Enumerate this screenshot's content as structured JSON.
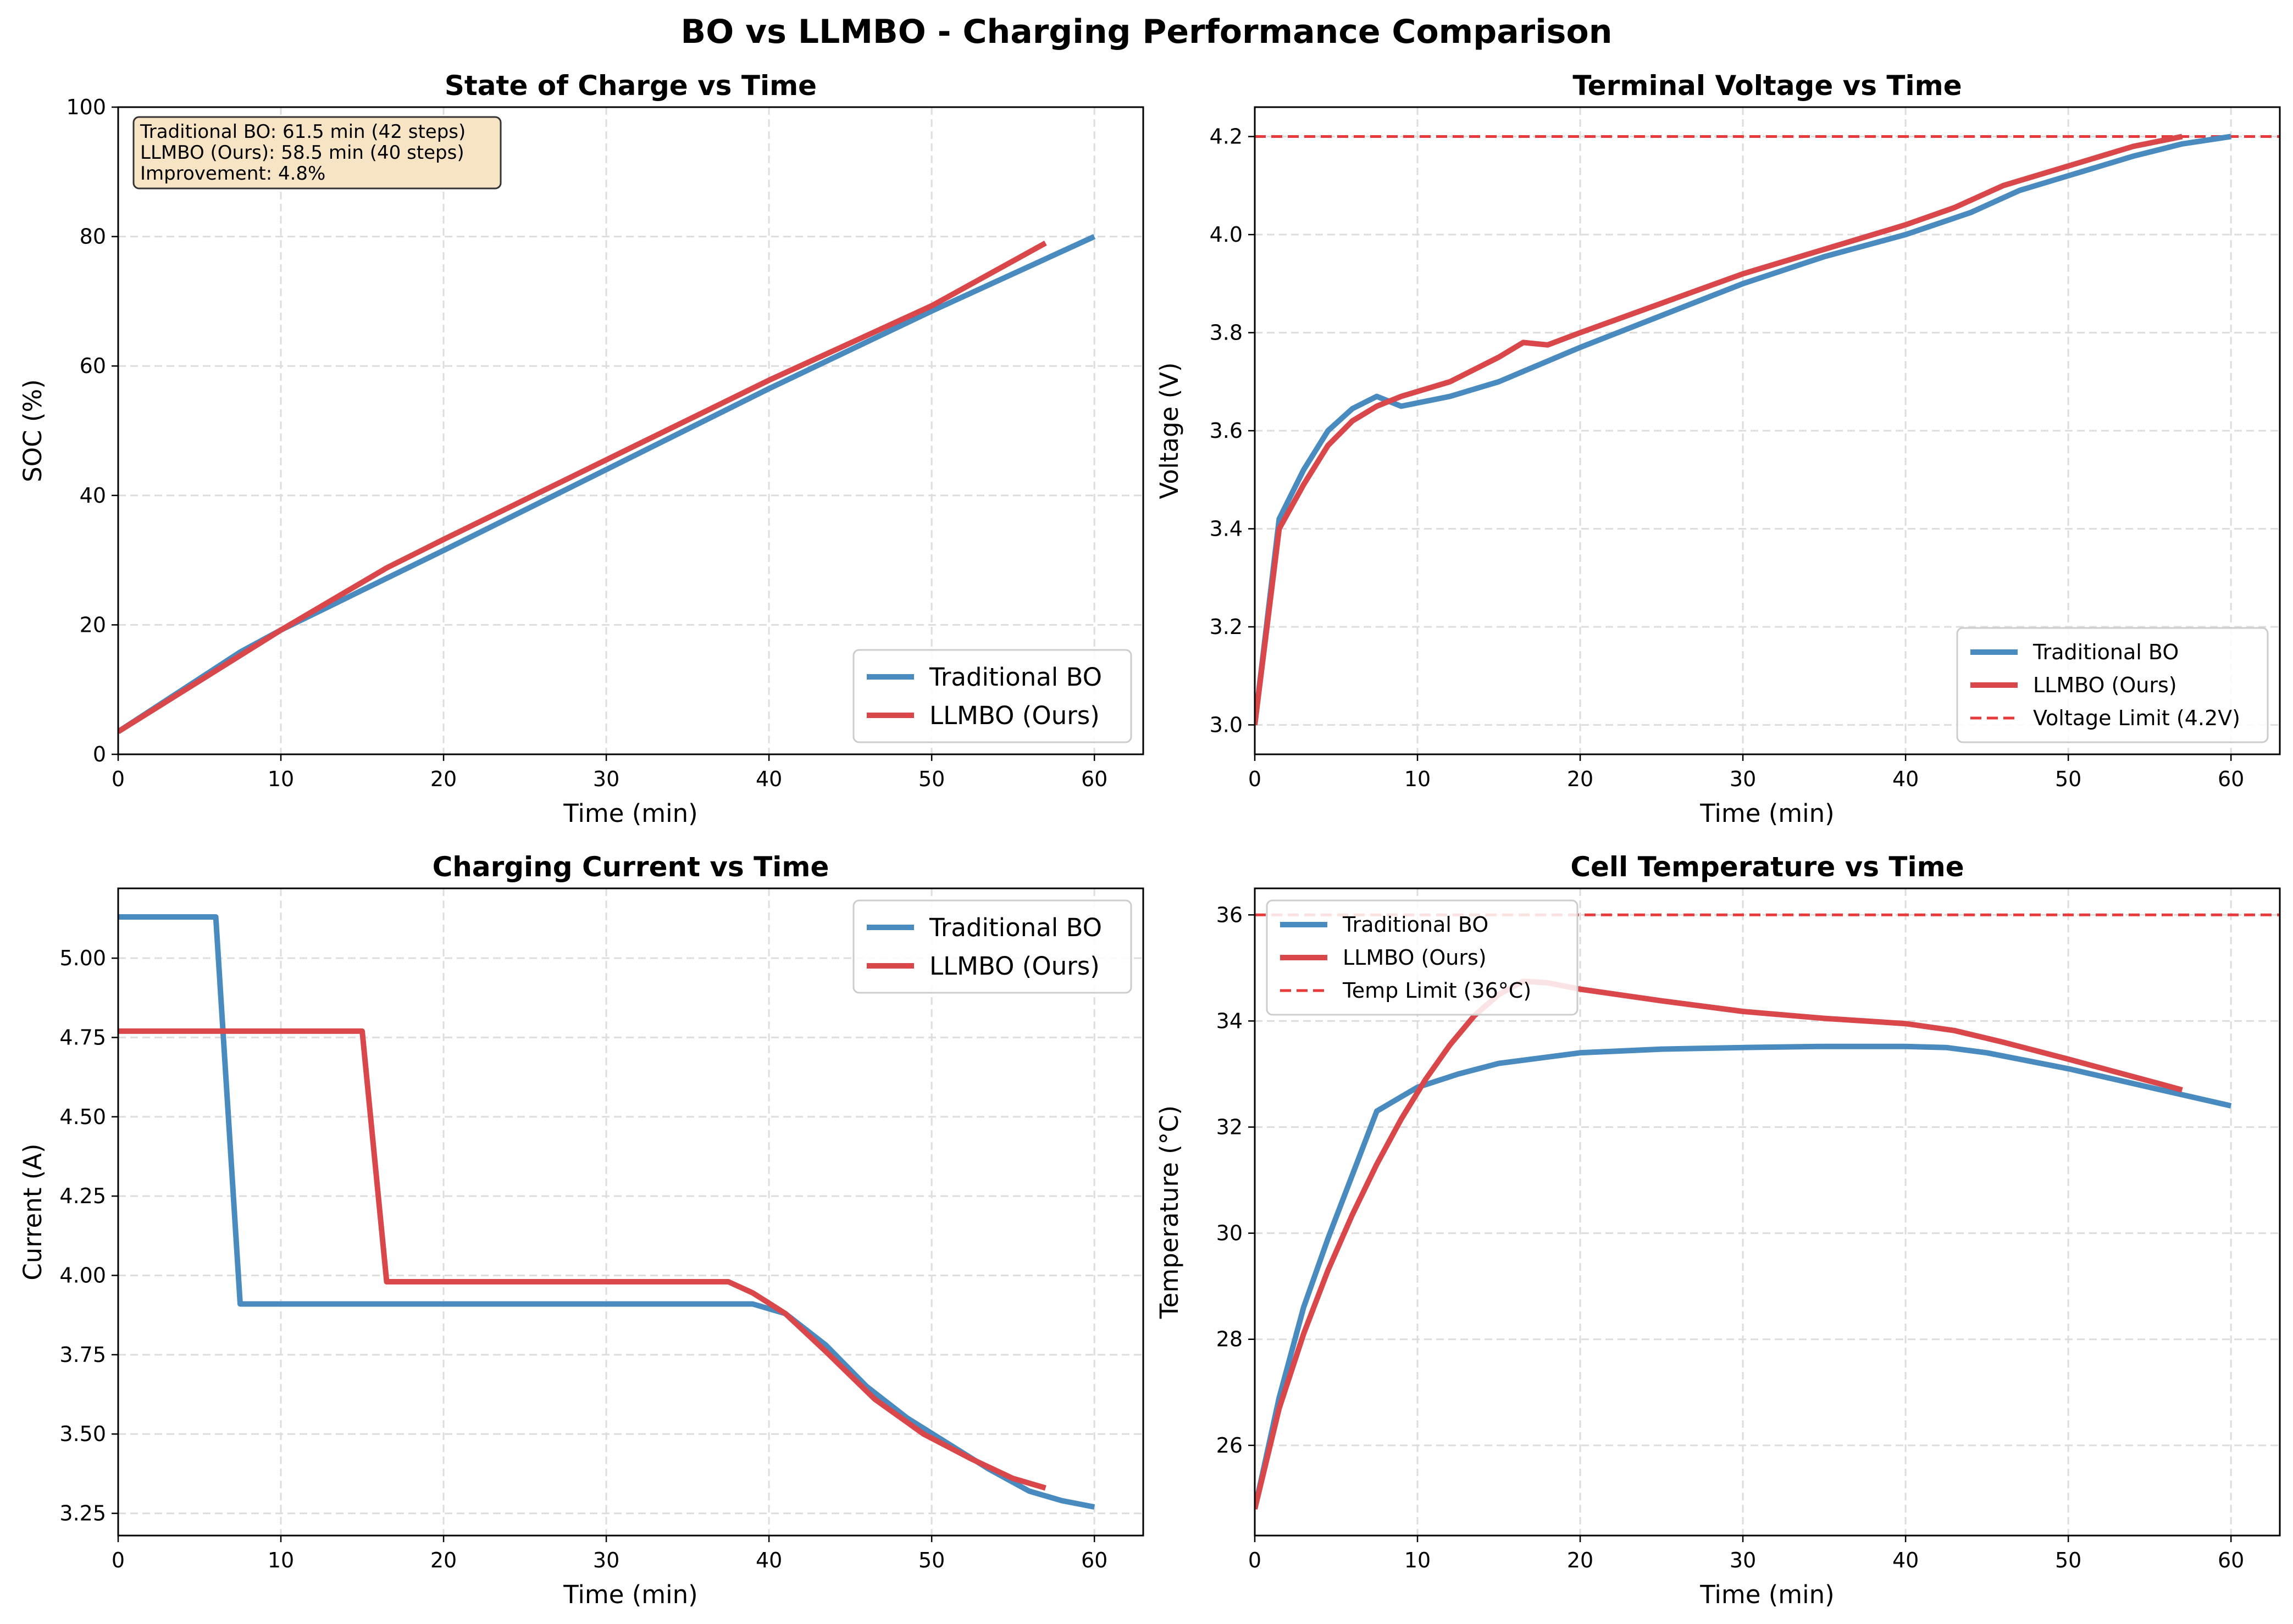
{
  "suptitle": "BO vs LLMBO - Charging Performance Comparison",
  "colors": {
    "traditional": "#4a8bbf",
    "llmbo": "#d9474b",
    "limit": "#e8393b",
    "grid": "#dddddd",
    "annotation_bg": "#f6e4c4"
  },
  "chart_data": [
    {
      "type": "line",
      "title": "State of Charge vs Time",
      "xlabel": "Time (min)",
      "ylabel": "SOC (%)",
      "xlim": [
        0,
        63
      ],
      "ylim": [
        0,
        100
      ],
      "xticks": [
        "0",
        "10",
        "20",
        "30",
        "40",
        "50",
        "60"
      ],
      "yticks": [
        "0",
        "20",
        "40",
        "60",
        "80",
        "100"
      ],
      "grid": true,
      "legend_position": "lower-right",
      "annotation": [
        "Traditional BO: 61.5 min (42 steps)",
        "LLMBO (Ours): 58.5 min (40 steps)",
        "Improvement: 4.8%"
      ],
      "series": [
        {
          "name": "Traditional BO",
          "x": [
            0,
            7.5,
            10,
            20,
            30,
            40,
            50,
            60
          ],
          "y": [
            3.5,
            15.8,
            19.2,
            31.5,
            44,
            56.5,
            68.5,
            80
          ]
        },
        {
          "name": "LLMBO (Ours)",
          "x": [
            0,
            10,
            16.5,
            20,
            30,
            40,
            50,
            57
          ],
          "y": [
            3.5,
            19.2,
            28.8,
            33.2,
            45.5,
            57.8,
            69.3,
            79
          ]
        }
      ]
    },
    {
      "type": "line",
      "title": "Terminal Voltage vs Time",
      "xlabel": "Time (min)",
      "ylabel": "Voltage (V)",
      "xlim": [
        0,
        63
      ],
      "ylim": [
        2.94,
        4.26
      ],
      "xticks": [
        "0",
        "10",
        "20",
        "30",
        "40",
        "50",
        "60"
      ],
      "yticks": [
        "3.0",
        "3.2",
        "3.4",
        "3.6",
        "3.8",
        "4.0",
        "4.2"
      ],
      "grid": true,
      "legend_position": "lower-right",
      "limit": {
        "name": "Voltage Limit (4.2V)",
        "value": 4.2
      },
      "series": [
        {
          "name": "Traditional BO",
          "x": [
            0,
            1.5,
            3,
            4.5,
            6,
            7.5,
            9,
            12,
            15,
            20,
            25,
            30,
            35,
            40,
            44,
            47,
            50,
            54,
            57,
            60
          ],
          "y": [
            3.0,
            3.42,
            3.52,
            3.6,
            3.645,
            3.67,
            3.65,
            3.67,
            3.7,
            3.77,
            3.835,
            3.9,
            3.955,
            4.0,
            4.045,
            4.09,
            4.12,
            4.16,
            4.185,
            4.2
          ]
        },
        {
          "name": "LLMBO (Ours)",
          "x": [
            0,
            1.5,
            3,
            4.5,
            6,
            7.5,
            9,
            12,
            15,
            16.5,
            18,
            20,
            25,
            30,
            35,
            40,
            43,
            46,
            50,
            54,
            57
          ],
          "y": [
            3.0,
            3.4,
            3.49,
            3.57,
            3.62,
            3.65,
            3.67,
            3.7,
            3.75,
            3.78,
            3.775,
            3.8,
            3.86,
            3.92,
            3.97,
            4.02,
            4.055,
            4.1,
            4.14,
            4.18,
            4.2
          ]
        }
      ]
    },
    {
      "type": "line",
      "title": "Charging Current vs Time",
      "xlabel": "Time (min)",
      "ylabel": "Current (A)",
      "xlim": [
        0,
        63
      ],
      "ylim": [
        3.18,
        5.22
      ],
      "xticks": [
        "0",
        "10",
        "20",
        "30",
        "40",
        "50",
        "60"
      ],
      "yticks": [
        "3.25",
        "3.50",
        "3.75",
        "4.00",
        "4.25",
        "4.50",
        "4.75",
        "5.00"
      ],
      "grid": true,
      "legend_position": "upper-right",
      "series": [
        {
          "name": "Traditional BO",
          "x": [
            0,
            6,
            7.5,
            39,
            41,
            43.5,
            46,
            48.5,
            51,
            53.5,
            56,
            58,
            60
          ],
          "y": [
            5.13,
            5.13,
            3.91,
            3.91,
            3.88,
            3.78,
            3.65,
            3.55,
            3.47,
            3.39,
            3.32,
            3.29,
            3.27
          ]
        },
        {
          "name": "LLMBO (Ours)",
          "x": [
            0,
            15,
            16.5,
            37.5,
            39,
            41,
            43.5,
            46.5,
            49.5,
            52.5,
            55,
            57
          ],
          "y": [
            4.77,
            4.77,
            3.98,
            3.98,
            3.945,
            3.88,
            3.76,
            3.61,
            3.5,
            3.42,
            3.36,
            3.33
          ]
        }
      ]
    },
    {
      "type": "line",
      "title": "Cell Temperature vs Time",
      "xlabel": "Time (min)",
      "ylabel": "Temperature (°C)",
      "xlim": [
        0,
        63
      ],
      "ylim": [
        24.3,
        36.5
      ],
      "xticks": [
        "0",
        "10",
        "20",
        "30",
        "40",
        "50",
        "60"
      ],
      "yticks": [
        "26",
        "28",
        "30",
        "32",
        "34",
        "36"
      ],
      "grid": true,
      "legend_position": "upper-left",
      "limit": {
        "name": "Temp Limit (36°C)",
        "value": 36
      },
      "series": [
        {
          "name": "Traditional BO",
          "x": [
            0,
            1.5,
            3,
            4.5,
            6,
            7.5,
            10,
            12.5,
            15,
            20,
            25,
            30,
            35,
            40,
            42.5,
            45,
            50,
            55,
            60
          ],
          "y": [
            24.8,
            26.9,
            28.6,
            29.9,
            31.1,
            32.3,
            32.75,
            33.0,
            33.2,
            33.4,
            33.47,
            33.5,
            33.52,
            33.52,
            33.5,
            33.4,
            33.1,
            32.75,
            32.4
          ]
        },
        {
          "name": "LLMBO (Ours)",
          "x": [
            0,
            1.5,
            3,
            4.5,
            6,
            7.5,
            9,
            10.5,
            12,
            13.5,
            15,
            16.5,
            18,
            20,
            25,
            30,
            35,
            40,
            43,
            46,
            50,
            54,
            57
          ],
          "y": [
            24.8,
            26.7,
            28.1,
            29.3,
            30.35,
            31.3,
            32.15,
            32.9,
            33.55,
            34.1,
            34.5,
            34.75,
            34.72,
            34.6,
            34.38,
            34.18,
            34.05,
            33.95,
            33.82,
            33.6,
            33.28,
            32.95,
            32.7
          ]
        }
      ]
    }
  ]
}
